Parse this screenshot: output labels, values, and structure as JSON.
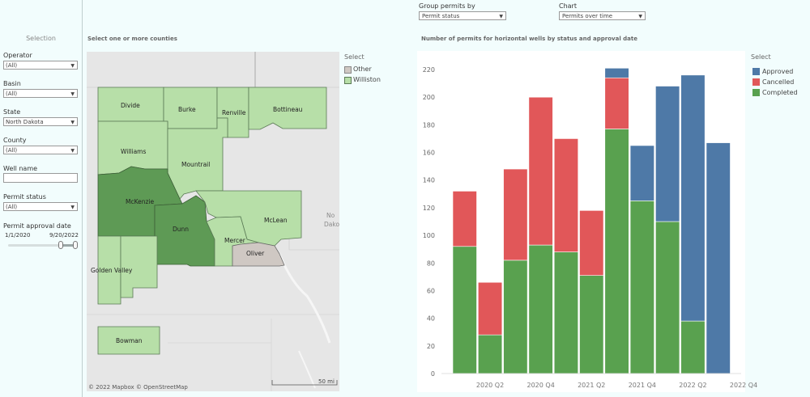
{
  "sidebar": {
    "title": "Selection",
    "filters": [
      {
        "label": "Operator",
        "value": "(All)"
      },
      {
        "label": "Basin",
        "value": "(All)"
      },
      {
        "label": "State",
        "value": "North Dakota"
      },
      {
        "label": "County",
        "value": "(All)"
      }
    ],
    "well_name": {
      "label": "Well name",
      "value": ""
    },
    "permit_status": {
      "label": "Permit status",
      "value": "(All)"
    },
    "approval_date": {
      "label": "Permit approval date",
      "start": "1/1/2020",
      "end": "9/20/2022"
    }
  },
  "controls": {
    "group_label": "Group permits by",
    "group_value": "Permit status",
    "chart_label": "Chart",
    "chart_value": "Permits over time"
  },
  "map": {
    "title": "Select one or more counties",
    "legend_title": "Select",
    "legend": [
      {
        "name": "Other",
        "color": "#cfc8c3"
      },
      {
        "name": "Williston",
        "color": "#b7dfa8"
      }
    ],
    "counties": [
      "Divide",
      "Burke",
      "Renville",
      "Bottineau",
      "Williams",
      "Mountrail",
      "McKenzie",
      "Dunn",
      "McLean",
      "Mercer",
      "Oliver",
      "Golden Valley",
      "Bowman"
    ],
    "state_label_1": "No",
    "state_label_2": "Dako",
    "attribution": "© 2022 Mapbox  © OpenStreetMap",
    "scale": "50 mi"
  },
  "chart": {
    "title": "Number of permits for horizontal wells by status and approval date",
    "legend_title": "Select",
    "colors": {
      "Approved": "#4e79a7",
      "Cancelled": "#e15759",
      "Completed": "#59a14f",
      "Other": "#c9c0bb"
    }
  },
  "chart_data": {
    "type": "bar",
    "stacked": true,
    "title": "Number of permits for horizontal wells by status and approval date",
    "categories": [
      "2020 Q1",
      "2020 Q2",
      "2020 Q3",
      "2020 Q4",
      "2021 Q1",
      "2021 Q2",
      "2021 Q3",
      "2021 Q4",
      "2022 Q1",
      "2022 Q2",
      "2022 Q3"
    ],
    "x_tick_labels": [
      "2020 Q2",
      "2020 Q4",
      "2021 Q2",
      "2021 Q4",
      "2022 Q2",
      "2022 Q4"
    ],
    "ylim": [
      0,
      220
    ],
    "yticks": [
      0,
      20,
      40,
      60,
      80,
      100,
      120,
      140,
      160,
      180,
      200,
      220
    ],
    "series": [
      {
        "name": "Completed",
        "values": [
          92,
          28,
          82,
          93,
          88,
          71,
          177,
          125,
          110,
          38,
          0
        ]
      },
      {
        "name": "Cancelled",
        "values": [
          40,
          38,
          66,
          107,
          82,
          47,
          37,
          0,
          0,
          0,
          0
        ]
      },
      {
        "name": "Approved",
        "values": [
          0,
          0,
          0,
          0,
          0,
          0,
          7,
          40,
          98,
          178,
          167
        ]
      }
    ],
    "legend": [
      "Approved",
      "Cancelled",
      "Completed"
    ],
    "grid": false,
    "legend_position": "top-right"
  }
}
